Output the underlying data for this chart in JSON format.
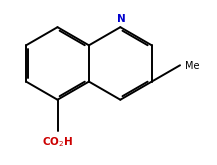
{
  "background_color": "#ffffff",
  "bond_color": "#000000",
  "N_color": "#0000cd",
  "CO2H_color": "#cc0000",
  "Me_color": "#000000",
  "linewidth": 1.4,
  "off": 0.055,
  "shorten": 0.1,
  "bl": 1.0
}
